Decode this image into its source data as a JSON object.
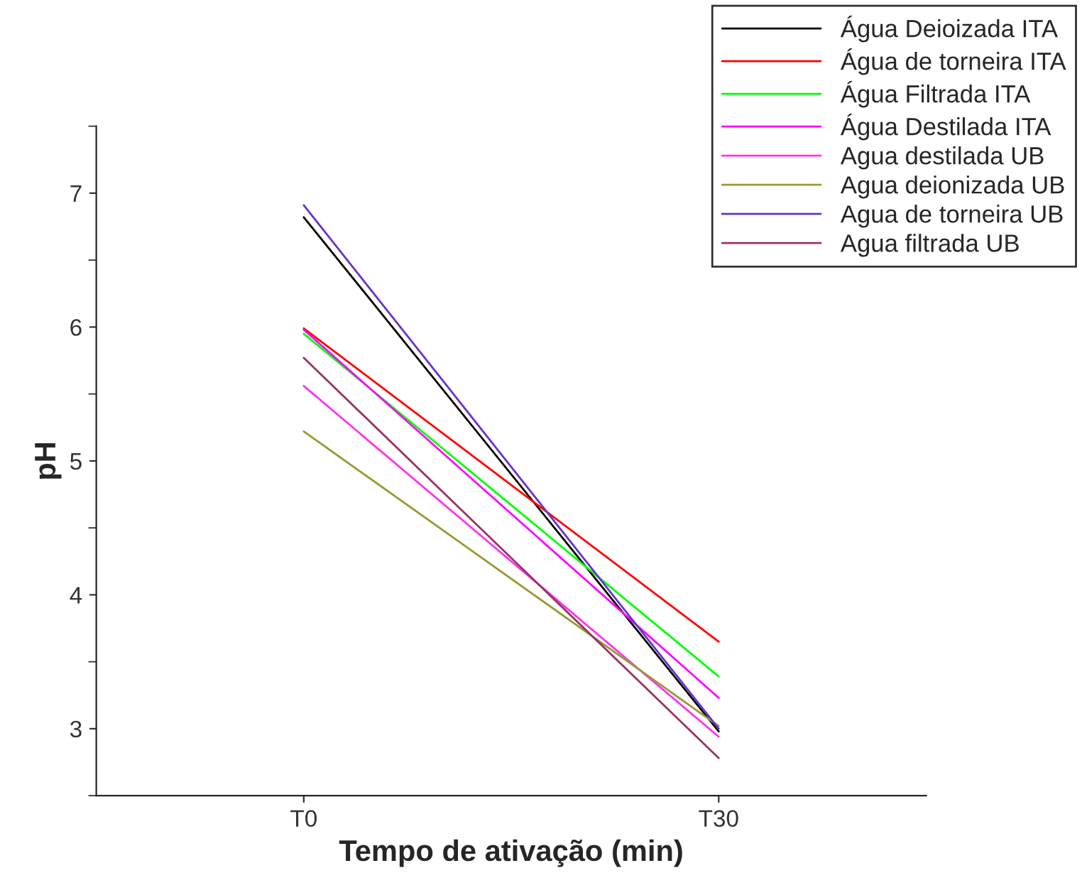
{
  "chart_data": {
    "type": "line",
    "xlabel": "Tempo de ativação (min)",
    "ylabel": "pH",
    "categories": [
      "T0",
      "T30"
    ],
    "ylim": [
      2.5,
      7.5
    ],
    "yticks": [
      3,
      4,
      5,
      6,
      7
    ],
    "grid": false,
    "legend": "top right",
    "marker": "none",
    "line_style": "solid",
    "series": [
      {
        "name": "Água Deioizada ITA",
        "color": "#000000",
        "values": [
          6.82,
          2.98
        ]
      },
      {
        "name": "Água de torneira ITA",
        "color": "#ff0000",
        "values": [
          5.99,
          3.65
        ]
      },
      {
        "name": "Água Filtrada ITA",
        "color": "#00ff00",
        "values": [
          5.95,
          3.39
        ]
      },
      {
        "name": "Água Destilada ITA",
        "color": "#ff00ff",
        "values": [
          5.98,
          3.23
        ]
      },
      {
        "name": "Agua destilada UB",
        "color": "#ff33ee",
        "values": [
          5.56,
          2.94
        ]
      },
      {
        "name": "Agua deionizada UB",
        "color": "#999933",
        "values": [
          5.22,
          3.02
        ]
      },
      {
        "name": "Agua de torneira UB",
        "color": "#6633cc",
        "values": [
          6.91,
          3.0
        ]
      },
      {
        "name": "Agua filtrada UB",
        "color": "#993366",
        "values": [
          5.77,
          2.78
        ]
      }
    ]
  }
}
